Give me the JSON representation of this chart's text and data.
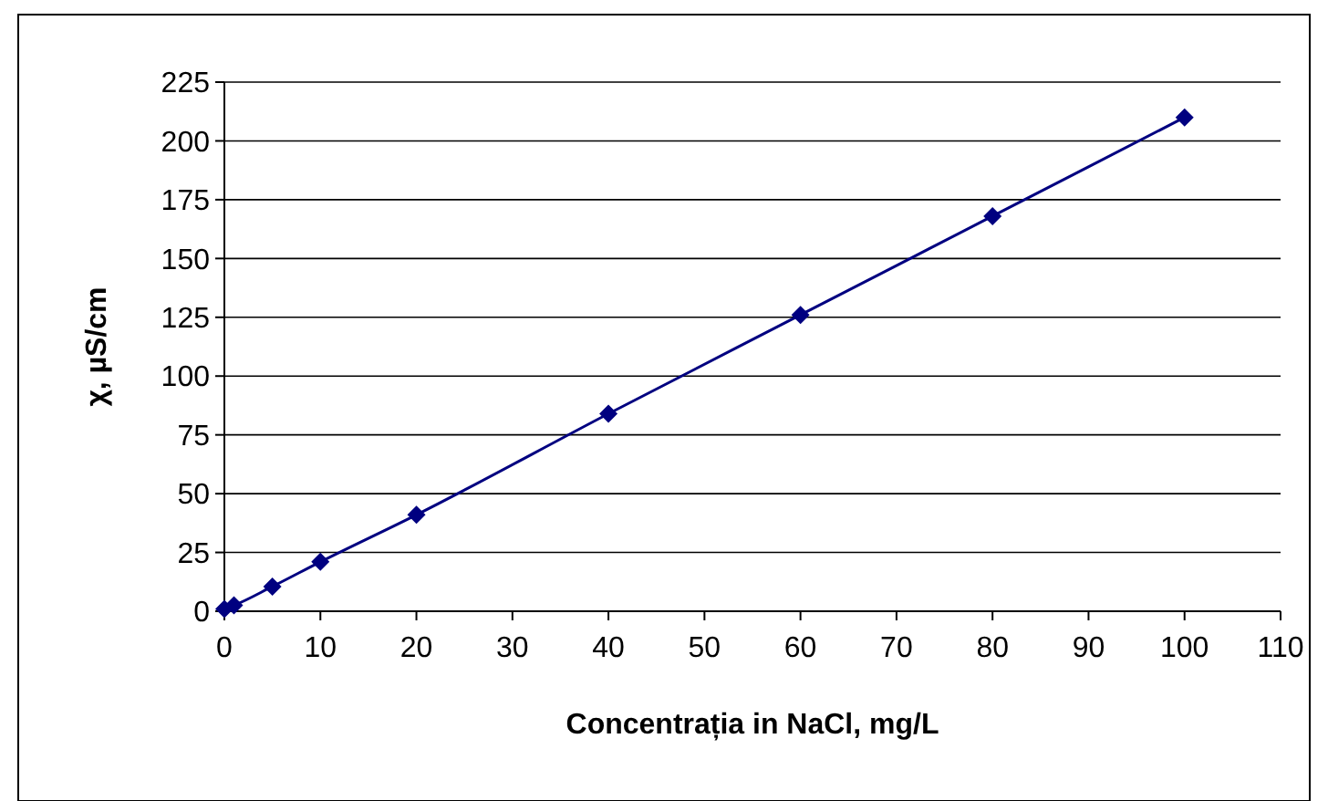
{
  "chart_data": {
    "type": "line",
    "xlabel": "Concentrația in NaCl, mg/L",
    "ylabel": "χ, µS/cm",
    "x": [
      0,
      1,
      5,
      10,
      20,
      40,
      60,
      80,
      100
    ],
    "series": [
      {
        "color": "#000080",
        "values": [
          1,
          2.5,
          10.5,
          21,
          41,
          84,
          126,
          168,
          210
        ]
      }
    ],
    "xlim": [
      0,
      110
    ],
    "xticks": [
      0,
      10,
      20,
      30,
      40,
      50,
      60,
      70,
      80,
      90,
      100,
      110
    ],
    "ylim": [
      0,
      225
    ],
    "yticks": [
      0,
      25,
      50,
      75,
      100,
      125,
      150,
      175,
      200,
      225
    ],
    "grid": "y",
    "marker": "diamond",
    "line_style": "solid"
  }
}
